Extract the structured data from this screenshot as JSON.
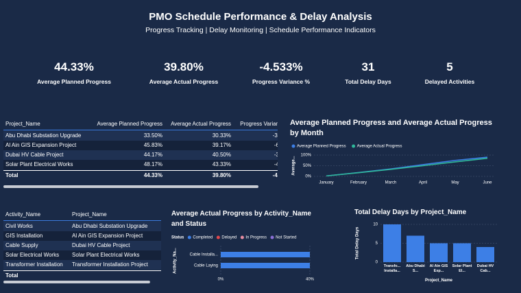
{
  "header": {
    "title": "PMO Schedule Performance & Delay Analysis",
    "subtitle": "Progress Tracking | Delay Monitoring | Schedule Performance Indicators"
  },
  "kpis": [
    {
      "value": "44.33%",
      "label": "Average Planned Progress"
    },
    {
      "value": "39.80%",
      "label": "Average Actual Progress"
    },
    {
      "value": "-4.533%",
      "label": "Progress Variance %"
    },
    {
      "value": "31",
      "label": "Total Delay Days"
    },
    {
      "value": "5",
      "label": "Delayed Activities"
    }
  ],
  "tables": [
    {
      "columns": [
        "Project_Name",
        "Average Planned Progress",
        "Average Actual Progress",
        "Progress Varian"
      ],
      "rows": [
        [
          "Abu Dhabi Substation Upgrade",
          "33.50%",
          "30.33%",
          "-3."
        ],
        [
          "Al Ain GIS Expansion Project",
          "45.83%",
          "39.17%",
          "-6"
        ],
        [
          "Dubai HV Cable Project",
          "44.17%",
          "40.50%",
          "-3"
        ],
        [
          "Solar Plant Electrical Works",
          "48.17%",
          "43.33%",
          "-4"
        ]
      ],
      "total": [
        "Total",
        "44.33%",
        "39.80%",
        "-4."
      ]
    },
    {
      "columns": [
        "Activity_Name",
        "Project_Name"
      ],
      "rows": [
        [
          "Civil Works",
          "Abu Dhabi Substation Upgrade"
        ],
        [
          "GIS Installation",
          "Al Ain GIS Expansion Project"
        ],
        [
          "Cable Supply",
          "Dubai HV Cable Project"
        ],
        [
          "Solar Electrical Works",
          "Solar Plant Electrical Works"
        ],
        [
          "Transformer Installation",
          "Transformer Installation Project"
        ]
      ],
      "total": [
        "Total"
      ]
    }
  ],
  "chart_data": [
    {
      "type": "line",
      "title": "Average Planned Progress and Average Actual Progress by Month",
      "y_label": "Average...",
      "categories": [
        "January",
        "February",
        "March",
        "April",
        "May",
        "June"
      ],
      "series": [
        {
          "name": "Average Planned Progress",
          "color": "#3d7fe6",
          "values": [
            2,
            18,
            35,
            55,
            75,
            90
          ]
        },
        {
          "name": "Average Actual Progress",
          "color": "#2fb89a",
          "values": [
            2,
            17,
            33,
            50,
            68,
            85
          ]
        }
      ],
      "ylim": [
        0,
        100
      ],
      "yticks": [
        {
          "value": 0,
          "label": "0%"
        },
        {
          "value": 50,
          "label": "50%"
        },
        {
          "value": 100,
          "label": "100%"
        }
      ],
      "grid": true
    },
    {
      "type": "hbar",
      "title": "Average Actual Progress by Activity_Name and Status",
      "y_label": "Activity_Na...",
      "legend_title": "Status",
      "categories": [
        "Cable Installa...",
        "Cable Laying"
      ],
      "series": [
        {
          "name": "Completed",
          "color": "#3d7fe6",
          "values": [
            40,
            40
          ]
        },
        {
          "name": "Delayed",
          "color": "#e0474c",
          "values": [
            null,
            null
          ]
        },
        {
          "name": "In Progress",
          "color": "#e58ba0",
          "values": [
            null,
            null
          ]
        },
        {
          "name": "Not Started",
          "color": "#8b6fd6",
          "values": [
            null,
            null
          ]
        }
      ],
      "xlim": [
        0,
        40
      ],
      "xticks": [
        {
          "value": 0,
          "label": "0%"
        },
        {
          "value": 40,
          "label": "40%"
        }
      ],
      "grid": true
    },
    {
      "type": "bar",
      "title": "Total Delay Days by Project_Name",
      "y_label": "Total Delay Days",
      "x_label": "Project_Name",
      "categories": [
        "Transfo... Installa...",
        "Abu Dhabi S...",
        "Al Ain GIS Exp...",
        "Solar Plant El...",
        "Dubai HV Cab..."
      ],
      "values": [
        10,
        7,
        5,
        5,
        4
      ],
      "color": "#3d7fe6",
      "ylim": [
        0,
        10
      ],
      "yticks": [
        0,
        5,
        10
      ],
      "grid": true
    }
  ]
}
